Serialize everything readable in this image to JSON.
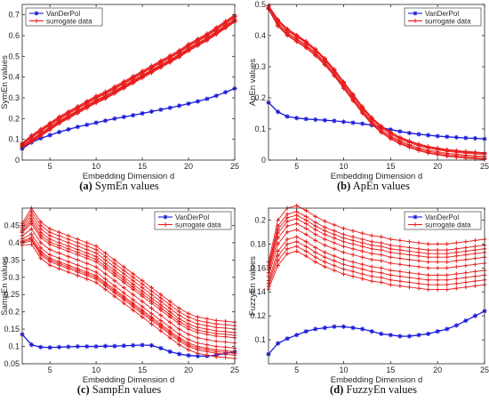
{
  "chart_data": [
    {
      "type": "line",
      "caption_letter": "(a)",
      "caption_text": " SymEn values",
      "xlabel": "Embedding Dimension d",
      "ylabel": "SymEn values",
      "xlim": [
        2,
        25
      ],
      "ylim": [
        0,
        0.75
      ],
      "xticks": [
        5,
        10,
        15,
        20,
        25
      ],
      "yticks": [
        0,
        0.1,
        0.2,
        0.3,
        0.4,
        0.5,
        0.6,
        0.7
      ],
      "ytick_labels": [
        "0",
        "0.1",
        "0.2",
        "0.3",
        "0.4",
        "0.5",
        "0.6",
        "0.7"
      ],
      "legend_position": "top-left",
      "legend": [
        "VanDerPol",
        "surrogate data"
      ],
      "x": [
        2,
        3,
        4,
        5,
        6,
        7,
        8,
        9,
        10,
        11,
        12,
        13,
        14,
        15,
        16,
        17,
        18,
        19,
        20,
        21,
        22,
        23,
        24,
        25
      ],
      "series": [
        {
          "name": "VanDerPol",
          "color": "#1a1adb",
          "marker": "star",
          "values": [
            0.055,
            0.085,
            0.105,
            0.12,
            0.135,
            0.148,
            0.16,
            0.17,
            0.18,
            0.19,
            0.2,
            0.208,
            0.216,
            0.225,
            0.234,
            0.243,
            0.252,
            0.262,
            0.272,
            0.283,
            0.295,
            0.31,
            0.327,
            0.345
          ]
        },
        {
          "name": "surrogate data",
          "color": "#e81c1c",
          "marker": "plus",
          "values": [
            0.07,
            0.1,
            0.13,
            0.16,
            0.19,
            0.215,
            0.24,
            0.265,
            0.29,
            0.31,
            0.335,
            0.36,
            0.385,
            0.41,
            0.435,
            0.46,
            0.485,
            0.51,
            0.54,
            0.565,
            0.59,
            0.62,
            0.65,
            0.68
          ]
        }
      ]
    },
    {
      "type": "line",
      "caption_letter": "(b)",
      "caption_text": " ApEn values",
      "xlabel": "Embedding Dimension d",
      "ylabel": "ApEn values",
      "xlim": [
        2,
        25
      ],
      "ylim": [
        0,
        0.5
      ],
      "xticks": [
        5,
        10,
        15,
        20,
        25
      ],
      "yticks": [
        0,
        0.1,
        0.2,
        0.3,
        0.4,
        0.5
      ],
      "ytick_labels": [
        "0",
        "0.1",
        "0.2",
        "0.3",
        "0.4",
        "0.5"
      ],
      "legend_position": "top-right",
      "legend": [
        "VanDerPol",
        "surrogate data"
      ],
      "x": [
        2,
        3,
        4,
        5,
        6,
        7,
        8,
        9,
        10,
        11,
        12,
        13,
        14,
        15,
        16,
        17,
        18,
        19,
        20,
        21,
        22,
        23,
        24,
        25
      ],
      "series": [
        {
          "name": "VanDerPol",
          "color": "#1a1adb",
          "marker": "star",
          "values": [
            0.185,
            0.155,
            0.14,
            0.135,
            0.132,
            0.13,
            0.128,
            0.126,
            0.123,
            0.12,
            0.117,
            0.112,
            0.105,
            0.098,
            0.092,
            0.087,
            0.083,
            0.08,
            0.077,
            0.075,
            0.073,
            0.071,
            0.07,
            0.068
          ]
        },
        {
          "name": "surrogate data",
          "color": "#e81c1c",
          "marker": "plus",
          "values": [
            0.49,
            0.44,
            0.41,
            0.39,
            0.37,
            0.345,
            0.315,
            0.28,
            0.24,
            0.2,
            0.16,
            0.125,
            0.098,
            0.078,
            0.062,
            0.05,
            0.04,
            0.032,
            0.027,
            0.022,
            0.019,
            0.016,
            0.014,
            0.012
          ]
        }
      ]
    },
    {
      "type": "line",
      "caption_letter": "(c)",
      "caption_text": " SampEn values",
      "xlabel": "Embedding Dimension d",
      "ylabel": "SampEn values",
      "xlim": [
        2,
        25
      ],
      "ylim": [
        0.05,
        0.5
      ],
      "xticks": [
        5,
        10,
        15,
        20,
        25
      ],
      "yticks": [
        0.05,
        0.1,
        0.15,
        0.2,
        0.25,
        0.3,
        0.35,
        0.4,
        0.45
      ],
      "ytick_labels": [
        "0.05",
        "0.1",
        "0.15",
        "0.2",
        "0.25",
        "0.3",
        "0.35",
        "0.4",
        "0.45"
      ],
      "legend_position": "top-right",
      "legend": [
        "VanDerPol",
        "surrogate data"
      ],
      "x": [
        2,
        3,
        4,
        5,
        6,
        7,
        8,
        9,
        10,
        11,
        12,
        13,
        14,
        15,
        16,
        17,
        18,
        19,
        20,
        21,
        22,
        23,
        24,
        25
      ],
      "series": [
        {
          "name": "VanDerPol",
          "color": "#1a1adb",
          "marker": "star",
          "values": [
            0.135,
            0.105,
            0.098,
            0.097,
            0.098,
            0.099,
            0.1,
            0.1,
            0.1,
            0.101,
            0.101,
            0.102,
            0.103,
            0.104,
            0.103,
            0.095,
            0.085,
            0.078,
            0.074,
            0.072,
            0.072,
            0.075,
            0.08,
            0.085
          ]
        },
        {
          "name": "surrogate data",
          "color": "#e81c1c",
          "marker": "plus",
          "values": [
            0.42,
            0.44,
            0.4,
            0.38,
            0.37,
            0.36,
            0.35,
            0.34,
            0.33,
            0.31,
            0.29,
            0.27,
            0.25,
            0.23,
            0.21,
            0.19,
            0.17,
            0.15,
            0.135,
            0.125,
            0.12,
            0.115,
            0.113,
            0.11
          ]
        }
      ]
    },
    {
      "type": "line",
      "caption_letter": "(d)",
      "caption_text": " FuzzyEn values",
      "xlabel": "Embedding Dimension d",
      "ylabel": "FuzzyEn values",
      "xlim": [
        2,
        25
      ],
      "ylim": [
        0.08,
        0.21
      ],
      "xticks": [
        5,
        10,
        15,
        20,
        25
      ],
      "yticks": [
        0.1,
        0.12,
        0.14,
        0.16,
        0.18,
        0.2
      ],
      "ytick_labels": [
        "0.1",
        "0.12",
        "0.14",
        "0.16",
        "0.18",
        "0.2"
      ],
      "legend_position": "top-right",
      "legend": [
        "VanDerPol",
        "surrogate data"
      ],
      "x": [
        2,
        3,
        4,
        5,
        6,
        7,
        8,
        9,
        10,
        11,
        12,
        13,
        14,
        15,
        16,
        17,
        18,
        19,
        20,
        21,
        22,
        23,
        24,
        25
      ],
      "series": [
        {
          "name": "VanDerPol",
          "color": "#1a1adb",
          "marker": "star",
          "values": [
            0.088,
            0.097,
            0.101,
            0.104,
            0.107,
            0.109,
            0.11,
            0.111,
            0.111,
            0.11,
            0.109,
            0.107,
            0.105,
            0.104,
            0.103,
            0.103,
            0.104,
            0.105,
            0.107,
            0.109,
            0.112,
            0.116,
            0.12,
            0.124
          ]
        },
        {
          "name": "surrogate data",
          "color": "#e81c1c",
          "marker": "plus",
          "values": [
            0.153,
            0.18,
            0.19,
            0.192,
            0.188,
            0.183,
            0.179,
            0.176,
            0.173,
            0.171,
            0.169,
            0.167,
            0.166,
            0.164,
            0.163,
            0.162,
            0.161,
            0.16,
            0.16,
            0.16,
            0.161,
            0.162,
            0.163,
            0.164
          ]
        }
      ]
    }
  ]
}
